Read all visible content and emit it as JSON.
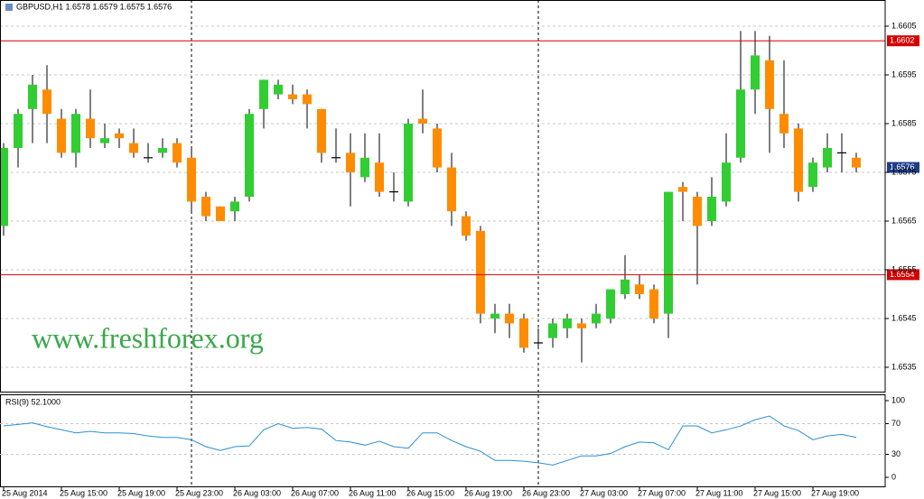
{
  "chart_data": [
    {
      "type": "candlestick",
      "title": "GBPUSD,H1  1.6578 1.6579 1.6575 1.6576",
      "annotation": "www.freshforex.org",
      "categories": [
        "25 Aug 2014",
        null,
        null,
        null,
        "25 Aug 15:00",
        null,
        null,
        null,
        "25 Aug 19:00",
        null,
        null,
        null,
        "25 Aug 23:00",
        null,
        null,
        null,
        "26 Aug 03:00",
        null,
        null,
        null,
        "26 Aug 07:00",
        null,
        null,
        null,
        "26 Aug 11:00",
        null,
        null,
        null,
        "26 Aug 15:00",
        null,
        null,
        null,
        "26 Aug 19:00",
        null,
        null,
        null,
        "26 Aug 23:00",
        null,
        null,
        null,
        "27 Aug 03:00",
        null,
        null,
        null,
        "27 Aug 07:00",
        null,
        null,
        null,
        "27 Aug 11:00",
        null,
        null,
        null,
        "27 Aug 15:00",
        null,
        null,
        null,
        "27 Aug 19:00",
        null,
        null,
        null
      ],
      "open": [
        1.6564,
        1.658,
        1.6588,
        1.6592,
        1.6586,
        1.6579,
        1.6586,
        1.6581,
        1.6583,
        1.6581,
        1.6578,
        1.6579,
        1.6581,
        1.6578,
        1.657,
        1.6568,
        1.6567,
        1.657,
        1.6588,
        1.6591,
        1.6591,
        1.6591,
        1.6588,
        1.6578,
        1.6579,
        1.6574,
        1.6577,
        1.6571,
        1.6569,
        1.6586,
        1.6584,
        1.6576,
        1.6566,
        1.6563,
        1.6545,
        1.6546,
        1.6545,
        1.654,
        1.6541,
        1.6543,
        1.6544,
        1.6544,
        1.6545,
        1.655,
        1.6552,
        1.6551,
        1.6546,
        1.6572,
        1.657,
        1.6565,
        1.6569,
        1.6578,
        1.6592,
        1.6598,
        1.6587,
        1.6584,
        1.6572,
        1.6576,
        1.6579,
        1.6578
      ],
      "high": [
        1.6581,
        1.6588,
        1.6595,
        1.6597,
        1.6588,
        1.6588,
        1.6592,
        1.6585,
        1.6584,
        1.6584,
        1.6581,
        1.6582,
        1.6582,
        1.658,
        1.6571,
        1.6568,
        1.657,
        1.6588,
        1.6594,
        1.6594,
        1.6593,
        1.6592,
        1.6588,
        1.6584,
        1.6583,
        1.6583,
        1.6583,
        1.6575,
        1.6586,
        1.6592,
        1.6585,
        1.6579,
        1.6567,
        1.6564,
        1.6548,
        1.6548,
        1.6546,
        1.6543,
        1.6545,
        1.6546,
        1.6545,
        1.6548,
        1.6551,
        1.6558,
        1.6554,
        1.6552,
        1.6571,
        1.6573,
        1.6571,
        1.6574,
        1.6583,
        1.6604,
        1.6604,
        1.6603,
        1.6598,
        1.6585,
        1.6578,
        1.6583,
        1.6583,
        1.6579
      ],
      "low": [
        1.6562,
        1.6576,
        1.6581,
        1.6581,
        1.6578,
        1.6576,
        1.658,
        1.658,
        1.658,
        1.6578,
        1.6577,
        1.6578,
        1.6576,
        1.6567,
        1.6565,
        1.6565,
        1.6565,
        1.6569,
        1.6584,
        1.659,
        1.6589,
        1.6584,
        1.6577,
        1.6577,
        1.6568,
        1.6573,
        1.657,
        1.6569,
        1.6568,
        1.6583,
        1.6575,
        1.6564,
        1.6561,
        1.6544,
        1.6542,
        1.6541,
        1.6538,
        1.6539,
        1.6539,
        1.6541,
        1.6536,
        1.6543,
        1.6544,
        1.6549,
        1.6549,
        1.6544,
        1.6541,
        1.6565,
        1.6552,
        1.6564,
        1.6568,
        1.6577,
        1.6587,
        1.6579,
        1.658,
        1.6569,
        1.6571,
        1.6575,
        1.6575,
        1.6575
      ],
      "close": [
        1.658,
        1.6587,
        1.6593,
        1.6587,
        1.6579,
        1.6587,
        1.6582,
        1.6582,
        1.6582,
        1.6579,
        1.6578,
        1.658,
        1.6577,
        1.6569,
        1.6566,
        1.6565,
        1.6569,
        1.6587,
        1.6594,
        1.6593,
        1.659,
        1.6589,
        1.6579,
        1.6578,
        1.6575,
        1.6578,
        1.6571,
        1.6571,
        1.6585,
        1.6585,
        1.6576,
        1.6567,
        1.6562,
        1.6546,
        1.6546,
        1.6544,
        1.6539,
        1.654,
        1.6544,
        1.6545,
        1.6543,
        1.6546,
        1.6551,
        1.6553,
        1.655,
        1.6545,
        1.6571,
        1.6571,
        1.6564,
        1.657,
        1.6577,
        1.6592,
        1.6599,
        1.6588,
        1.6583,
        1.6571,
        1.6577,
        1.658,
        1.6579,
        1.6576
      ],
      "up_color": "#32cd32",
      "down_color": "#ff8c00",
      "doji_color": "#000000",
      "ylim": [
        1.653,
        1.661
      ],
      "yticks": [
        1.6605,
        1.6595,
        1.6585,
        1.6575,
        1.6565,
        1.6555,
        1.6545,
        1.6535
      ],
      "grid": true,
      "hlines": [
        1.6602,
        1.6554
      ],
      "hline_color": "#d40000",
      "last_price": 1.6576,
      "last_price_color": "#1f3c88"
    },
    {
      "type": "line",
      "title": "RSI(9) 52.1000",
      "color": "#2a8fd6",
      "values": [
        67,
        69,
        71,
        66,
        62,
        58,
        60,
        58,
        58,
        57,
        54,
        52,
        52,
        49,
        40,
        35,
        40,
        41,
        62,
        70,
        64,
        65,
        63,
        48,
        46,
        42,
        47,
        40,
        38,
        58,
        58,
        48,
        40,
        34,
        22,
        22,
        21,
        19,
        16,
        22,
        28,
        28,
        31,
        40,
        46,
        45,
        36,
        67,
        67,
        58,
        62,
        67,
        75,
        80,
        67,
        61,
        49,
        54,
        56,
        52.1
      ],
      "ylim": [
        0,
        100
      ],
      "yticks": [
        100,
        70,
        30,
        0
      ]
    }
  ]
}
